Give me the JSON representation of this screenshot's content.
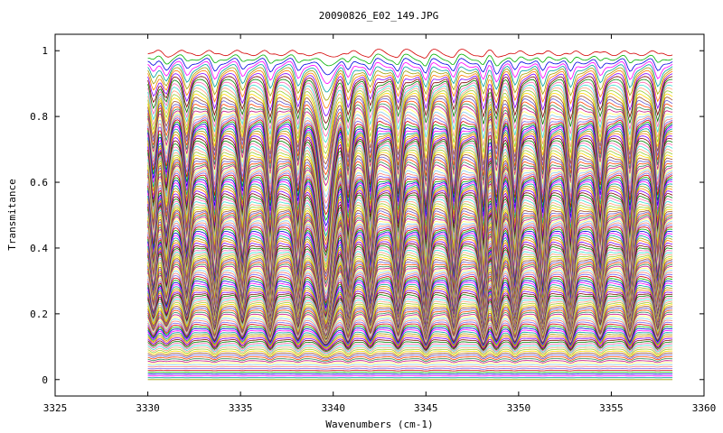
{
  "chart_data": {
    "type": "line",
    "title": "20090826_E02_149.JPG",
    "xlabel": "Wavenumbers (cm-1)",
    "ylabel": "Transmitance",
    "xlim": [
      3325,
      3360
    ],
    "ylim": [
      -0.05,
      1.05
    ],
    "x_ticks": [
      "3325",
      "3330",
      "3335",
      "3340",
      "3345",
      "3350",
      "3355",
      "3360"
    ],
    "y_ticks": [
      "0",
      "0.2",
      "0.4",
      "0.6",
      "0.8",
      "1"
    ],
    "grid": false,
    "legend": "none",
    "x_range_data": [
      3330,
      3358.3
    ],
    "spectra_count": 150,
    "baseline_top": 0.995,
    "baseline_bottom": 0.0,
    "absorption_lines": [
      {
        "x": 3330.3,
        "depth": 0.55
      },
      {
        "x": 3331.0,
        "depth": 0.45
      },
      {
        "x": 3332.1,
        "depth": 0.6
      },
      {
        "x": 3333.6,
        "depth": 0.8
      },
      {
        "x": 3335.1,
        "depth": 0.65
      },
      {
        "x": 3336.6,
        "depth": 0.85
      },
      {
        "x": 3338.1,
        "depth": 0.75
      },
      {
        "x": 3339.6,
        "depth": 1.0,
        "broad": true
      },
      {
        "x": 3340.8,
        "depth": 0.85
      },
      {
        "x": 3342.0,
        "depth": 0.7
      },
      {
        "x": 3343.5,
        "depth": 0.8
      },
      {
        "x": 3345.0,
        "depth": 0.95
      },
      {
        "x": 3346.5,
        "depth": 0.8
      },
      {
        "x": 3348.1,
        "depth": 0.95
      },
      {
        "x": 3348.8,
        "depth": 0.8
      },
      {
        "x": 3349.8,
        "depth": 0.85
      },
      {
        "x": 3351.3,
        "depth": 0.9
      },
      {
        "x": 3352.8,
        "depth": 0.95
      },
      {
        "x": 3354.4,
        "depth": 0.7
      },
      {
        "x": 3356.0,
        "depth": 0.85
      },
      {
        "x": 3357.5,
        "depth": 0.8
      }
    ],
    "colors": [
      "#d40000",
      "#00b000",
      "#0000e0",
      "#ff00ff",
      "#00a0a0",
      "#a0a000",
      "#ff8000",
      "#8000ff",
      "#800000",
      "#008000",
      "#ff69b4",
      "#40e0d0",
      "#ffa07a",
      "#9acd32",
      "#ffd700",
      "#a0522d",
      "#6a5acd",
      "#ff4500",
      "#2e8b57",
      "#c71585",
      "#ffff66",
      "#87ceeb",
      "#fa8072",
      "#7b68ee"
    ]
  }
}
